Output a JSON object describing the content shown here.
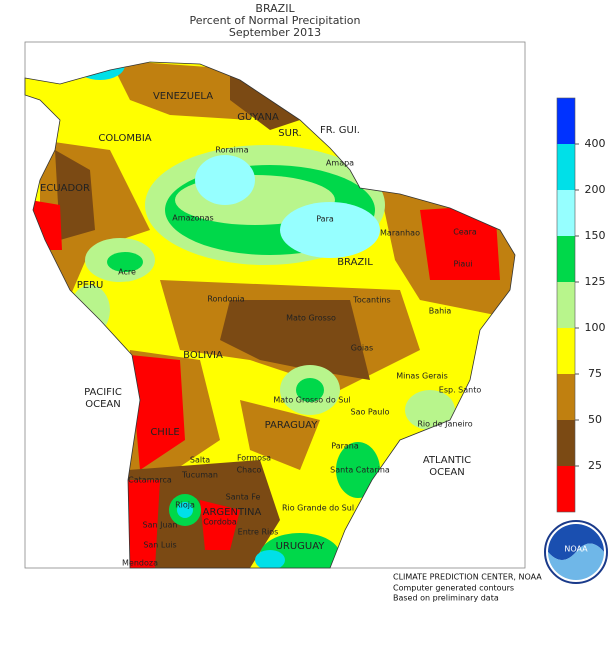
{
  "header": {
    "country": "BRAZIL",
    "title": "Percent of Normal Precipitation",
    "period": "September 2013"
  },
  "legend": {
    "ticks": [
      25,
      50,
      75,
      100,
      125,
      150,
      200,
      400
    ],
    "colors": [
      "#ff0000",
      "#7b4a14",
      "#c08010",
      "#ffff00",
      "#b8f58c",
      "#00d84a",
      "#96ffff",
      "#00e0e8",
      "#0032ff"
    ]
  },
  "labels": [
    "VENEZUELA",
    "GUYANA",
    "SUR.",
    "FR. GUI.",
    "COLOMBIA",
    "Amapa",
    "Roraima",
    "ECUADOR",
    "Amazonas",
    "Para",
    "Maranhao",
    "Ceara",
    "BRAZIL",
    "Acre",
    "PERU",
    "Rondonia",
    "Tocantins",
    "Piaui",
    "Bahia",
    "Mato Grosso",
    "BOLIVIA",
    "Goias",
    "PACIFIC",
    "OCEAN",
    "Minas Gerais",
    "Esp. Santo",
    "Mato Grosso do Sul",
    "Sao Paulo",
    "Rio de Janeiro",
    "PARAGUAY",
    "CHILE",
    "Salta",
    "Formosa",
    "Parana",
    "ATLANTIC",
    "OCEAN",
    "Santa Catarina",
    "Chaco",
    "Tucuman",
    "Catamarca",
    "Santa Fe",
    "Rio Grande do Sul",
    "ARGENTINA",
    "Rioja",
    "San Juan",
    "Cordoba",
    "Entre Rios",
    "San Luis",
    "URUGUAY",
    "Mendoza"
  ],
  "credits": [
    "CLIMATE PREDICTION CENTER, NOAA",
    "Computer generated contours",
    "Based on preliminary data"
  ],
  "logo": "NOAA"
}
